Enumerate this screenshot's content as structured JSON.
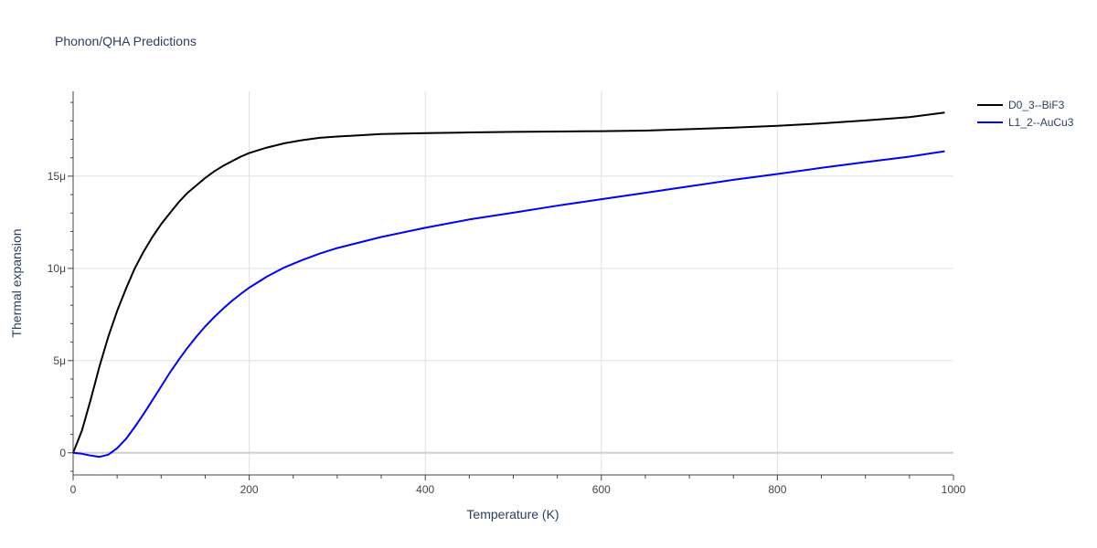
{
  "chart_data": {
    "type": "line",
    "title": "Phonon/QHA Predictions",
    "xlabel": "Temperature (K)",
    "ylabel": "Thermal expansion",
    "xlim": [
      0,
      1000
    ],
    "ylim": [
      -1.2,
      19.6
    ],
    "x_ticks": [
      {
        "value": 0,
        "label": "0"
      },
      {
        "value": 200,
        "label": "200"
      },
      {
        "value": 400,
        "label": "400"
      },
      {
        "value": 600,
        "label": "600"
      },
      {
        "value": 800,
        "label": "800"
      },
      {
        "value": 1000,
        "label": "1000"
      }
    ],
    "y_ticks": [
      {
        "value": 0,
        "label": "0"
      },
      {
        "value": 5,
        "label": "5μ"
      },
      {
        "value": 10,
        "label": "10μ"
      },
      {
        "value": 15,
        "label": "15μ"
      }
    ],
    "y_unit": "μ (1e-6)",
    "grid": true,
    "legend_position": "top-right",
    "series": [
      {
        "name": "D0_3--BiF3",
        "color": "#000000",
        "x": [
          0,
          10,
          20,
          30,
          40,
          50,
          60,
          70,
          80,
          90,
          100,
          110,
          120,
          130,
          140,
          150,
          160,
          170,
          180,
          190,
          200,
          220,
          240,
          260,
          280,
          300,
          350,
          400,
          450,
          500,
          550,
          600,
          650,
          700,
          750,
          800,
          850,
          900,
          950,
          990
        ],
        "y": [
          0,
          1.2,
          2.9,
          4.7,
          6.3,
          7.7,
          8.9,
          10.0,
          10.9,
          11.7,
          12.4,
          13.0,
          13.6,
          14.1,
          14.5,
          14.9,
          15.25,
          15.55,
          15.8,
          16.05,
          16.25,
          16.55,
          16.78,
          16.95,
          17.08,
          17.15,
          17.28,
          17.33,
          17.37,
          17.4,
          17.42,
          17.44,
          17.47,
          17.55,
          17.63,
          17.73,
          17.86,
          18.02,
          18.2,
          18.45
        ]
      },
      {
        "name": "L1_2--AuCu3",
        "color": "#0000ff",
        "x": [
          0,
          10,
          20,
          30,
          40,
          50,
          60,
          70,
          80,
          90,
          100,
          110,
          120,
          130,
          140,
          150,
          160,
          170,
          180,
          190,
          200,
          220,
          240,
          260,
          280,
          300,
          350,
          400,
          450,
          500,
          550,
          600,
          650,
          700,
          750,
          800,
          850,
          900,
          950,
          990
        ],
        "y": [
          0,
          -0.05,
          -0.15,
          -0.22,
          -0.1,
          0.25,
          0.75,
          1.4,
          2.1,
          2.85,
          3.6,
          4.35,
          5.05,
          5.7,
          6.3,
          6.85,
          7.35,
          7.8,
          8.22,
          8.6,
          8.95,
          9.55,
          10.05,
          10.45,
          10.8,
          11.1,
          11.7,
          12.2,
          12.65,
          13.02,
          13.4,
          13.75,
          14.1,
          14.45,
          14.8,
          15.12,
          15.45,
          15.76,
          16.06,
          16.35
        ]
      }
    ]
  }
}
